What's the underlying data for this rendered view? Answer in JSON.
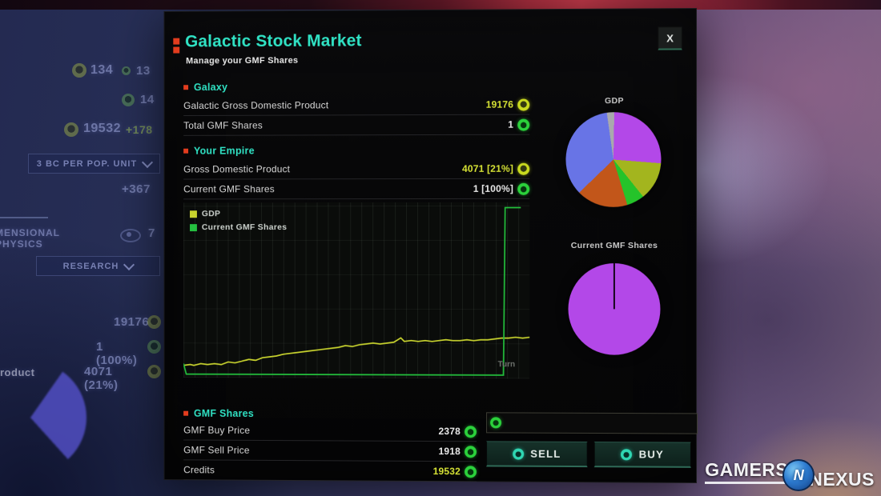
{
  "window": {
    "title": "Galactic Stock Market",
    "subtitle": "Manage your GMF Shares",
    "close": "X"
  },
  "galaxy": {
    "header": "Galaxy",
    "rows": [
      {
        "label": "Galactic Gross Domestic Product",
        "value": "19176"
      },
      {
        "label": "Total GMF Shares",
        "value": "1"
      }
    ]
  },
  "empire": {
    "header": "Your Empire",
    "rows": [
      {
        "label": "Gross Domestic Product",
        "value": "4071 [21%]"
      },
      {
        "label": "Current GMF Shares",
        "value": "1 [100%]"
      }
    ]
  },
  "market": {
    "header": "GMF Shares",
    "rows": [
      {
        "label": "GMF Buy Price",
        "value": "2378"
      },
      {
        "label": "GMF Sell Price",
        "value": "1918"
      },
      {
        "label": "Credits",
        "value": "19532"
      }
    ]
  },
  "trade": {
    "amount_value": "",
    "sell_label": "SELL",
    "buy_label": "BUY"
  },
  "colors": {
    "teal_accent": "#30e3c5",
    "yellow_value": "#d7e335",
    "coin_icon": "#c9da1f",
    "bag_icon": "#2bd13b",
    "header_bullet": "#e23c1e"
  },
  "chart_data": [
    {
      "type": "line",
      "name": "price-history",
      "xlabel": "Turn",
      "ylabel": "",
      "xlim": [
        0,
        100
      ],
      "ylim": [
        0,
        100
      ],
      "grid": true,
      "legend_position": "top-left",
      "series": [
        {
          "name": "GDP",
          "color": "#c8d32e",
          "points": [
            [
              0,
              7
            ],
            [
              2,
              7.5
            ],
            [
              3,
              7
            ],
            [
              5,
              8
            ],
            [
              7,
              7.5
            ],
            [
              9,
              8
            ],
            [
              11,
              7.5
            ],
            [
              13,
              9
            ],
            [
              15,
              8.5
            ],
            [
              17,
              9.5
            ],
            [
              19,
              10.5
            ],
            [
              21,
              10
            ],
            [
              23,
              11.5
            ],
            [
              25,
              12
            ],
            [
              27,
              12.5
            ],
            [
              29,
              13.5
            ],
            [
              31,
              14
            ],
            [
              33,
              14.5
            ],
            [
              35,
              15
            ],
            [
              37,
              15.5
            ],
            [
              39,
              16
            ],
            [
              41,
              16.5
            ],
            [
              43,
              17
            ],
            [
              45,
              17.5
            ],
            [
              47,
              18.5
            ],
            [
              49,
              18
            ],
            [
              51,
              19
            ],
            [
              53,
              19.5
            ],
            [
              55,
              20
            ],
            [
              57,
              19.5
            ],
            [
              59,
              20
            ],
            [
              61,
              20.5
            ],
            [
              63,
              23
            ],
            [
              64,
              21
            ],
            [
              66,
              21.5
            ],
            [
              68,
              21
            ],
            [
              70,
              21.5
            ],
            [
              72,
              21
            ],
            [
              74,
              21.5
            ],
            [
              76,
              22
            ],
            [
              78,
              21.5
            ],
            [
              80,
              21.5
            ],
            [
              82,
              22
            ],
            [
              84,
              21.5
            ],
            [
              86,
              22
            ],
            [
              88,
              22
            ],
            [
              90,
              22.5
            ],
            [
              92,
              23
            ],
            [
              94,
              23
            ],
            [
              96,
              23.5
            ],
            [
              98,
              23
            ],
            [
              100,
              23.5
            ]
          ]
        },
        {
          "name": "Current GMF Shares",
          "color": "#23bf3c",
          "points": [
            [
              0,
              8
            ],
            [
              0.8,
              2
            ],
            [
              92.5,
              2
            ],
            [
              93,
              97
            ],
            [
              97.5,
              97
            ]
          ]
        }
      ]
    },
    {
      "type": "pie",
      "name": "gdp-pie",
      "title": "GDP",
      "start_angle": -8,
      "slices": [
        {
          "value": 2.5,
          "color": "#a9a9ad"
        },
        {
          "value": 26,
          "color": "#b348e8"
        },
        {
          "value": 13,
          "color": "#a3b51e"
        },
        {
          "value": 6,
          "color": "#25c32a"
        },
        {
          "value": 17.5,
          "color": "#c2561a"
        },
        {
          "value": 35,
          "color": "#6874e6"
        }
      ]
    },
    {
      "type": "pie",
      "name": "shares-pie",
      "title": "Current GMF Shares",
      "start_angle": 0,
      "slices": [
        {
          "value": 100,
          "color": "#b348e8"
        }
      ]
    }
  ],
  "hud": {
    "stats": [
      {
        "value": "134",
        "value2": "13"
      },
      {
        "value": "14"
      },
      {
        "value": "19532",
        "delta": "+178"
      }
    ],
    "pop_dropdown": "3 BC PER POP. UNIT",
    "income_delta": "+367",
    "research_partial": "MENSIONAL PHYSICS",
    "research_count": "7",
    "research_dropdown": "RESEARCH",
    "mirror_values": [
      "19176",
      "1 (100%)",
      "4071 (21%)"
    ],
    "partial_label": "roduct"
  },
  "watermark": {
    "gamers": "GAMERS",
    "nexus": "NEXUS",
    "emblem": "N"
  }
}
